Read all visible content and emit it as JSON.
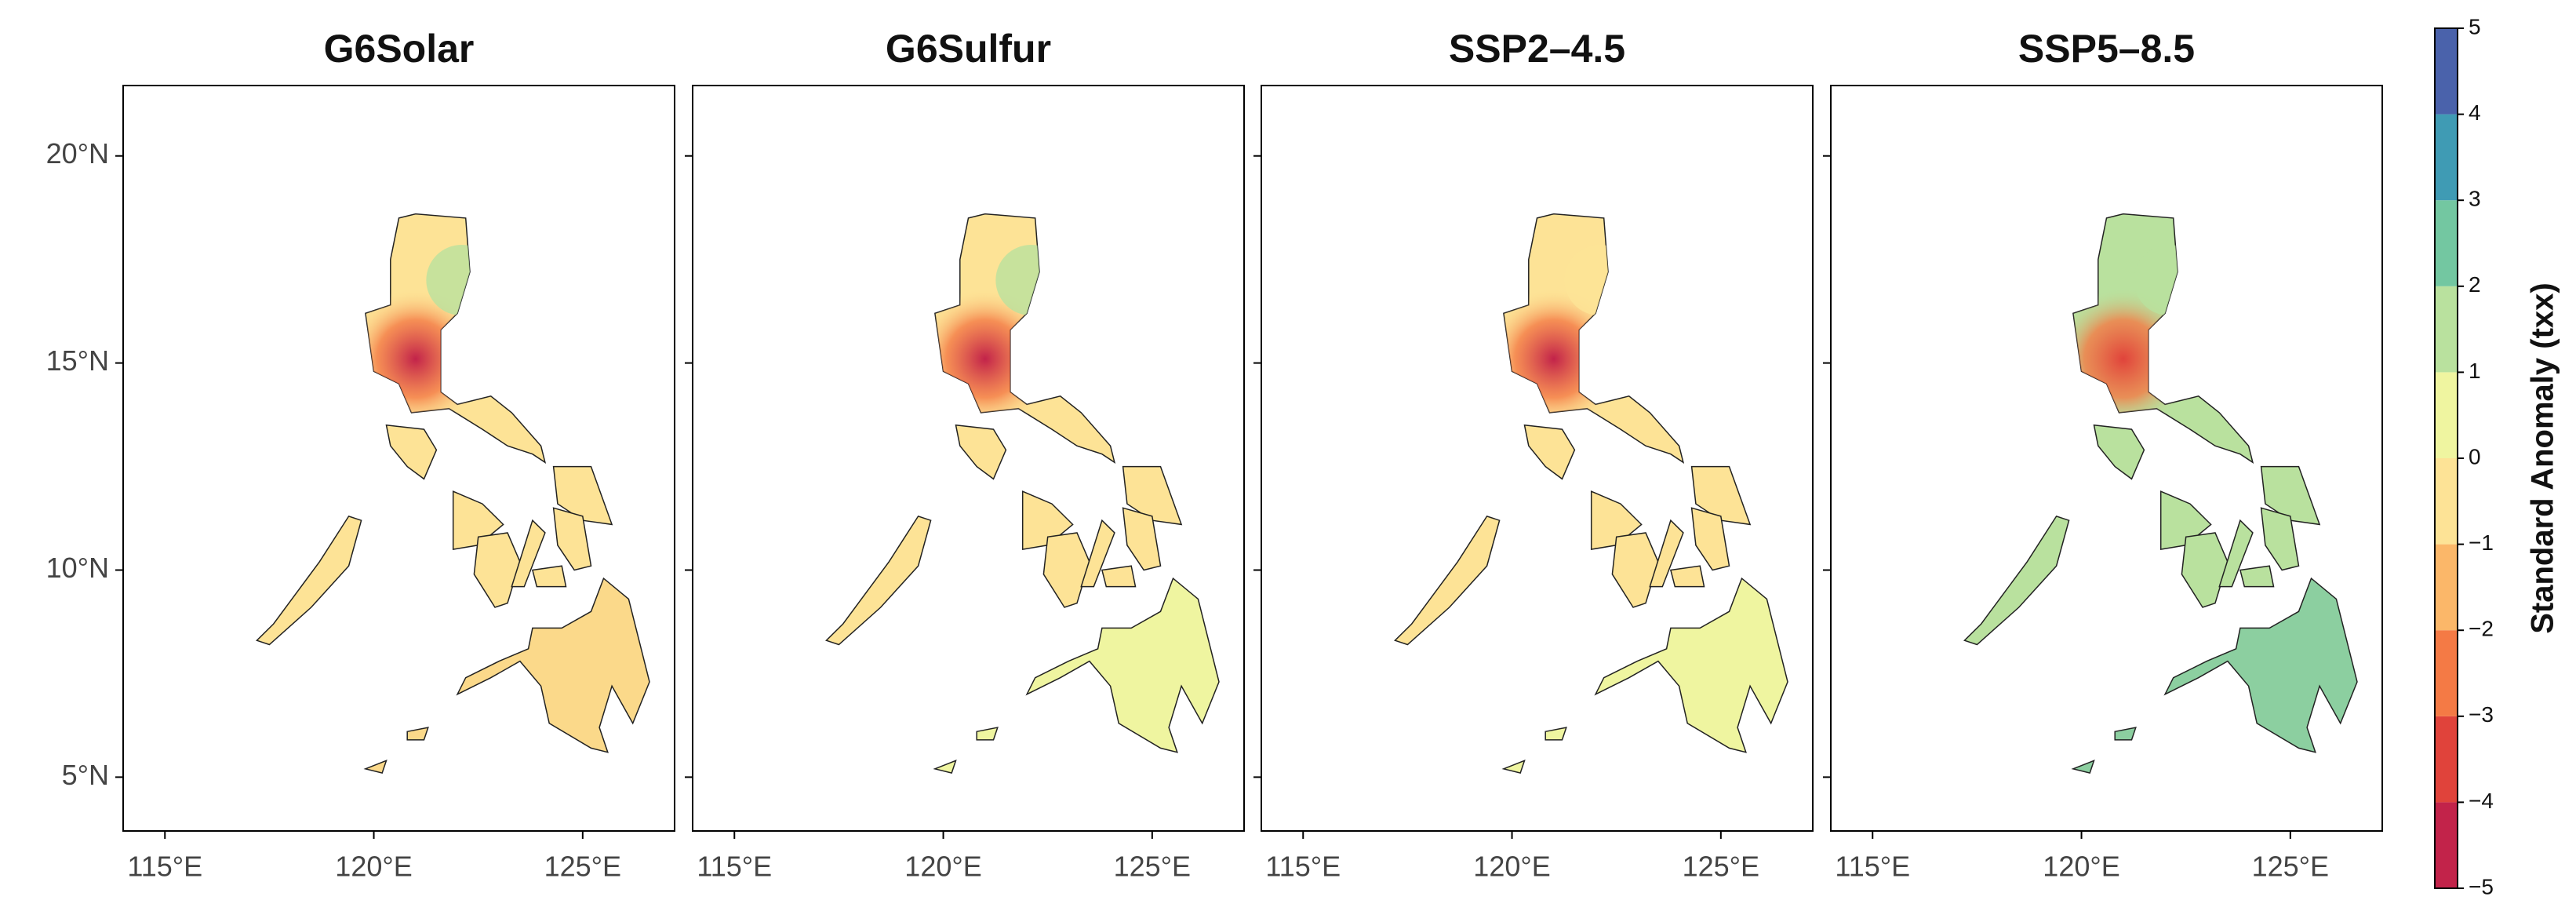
{
  "chart_data": {
    "type": "map",
    "panels": [
      {
        "title": "G6Solar"
      },
      {
        "title": "G6Sulfur"
      },
      {
        "title": "SSP2–4.5"
      },
      {
        "title": "SSP5–8.5"
      }
    ],
    "xlim": [
      114,
      127.2
    ],
    "xticks": [
      {
        "value": 115,
        "label": "115°E"
      },
      {
        "value": 120,
        "label": "120°E"
      },
      {
        "value": 125,
        "label": "125°E"
      }
    ],
    "ylim": [
      3.7,
      21.7
    ],
    "yticks": [
      {
        "value": 5,
        "label": "5°N"
      },
      {
        "value": 10,
        "label": "10°N"
      },
      {
        "value": 15,
        "label": "15°N"
      },
      {
        "value": 20,
        "label": "20°N"
      }
    ],
    "colorbar": {
      "label": "Standard Anomaly (txx)",
      "lim": [
        -5,
        5
      ],
      "ticks": [
        {
          "value": -5,
          "label": "−5"
        },
        {
          "value": -4,
          "label": "−4"
        },
        {
          "value": -3,
          "label": "−3"
        },
        {
          "value": -2,
          "label": "−2"
        },
        {
          "value": -1,
          "label": "−1"
        },
        0,
        1,
        2,
        3,
        4,
        5
      ],
      "colors": [
        "#c2234a",
        "#e0433b",
        "#f47a45",
        "#fbb769",
        "#fde396",
        "#eff5a0",
        "#b9e19e",
        "#73c7a1",
        "#3f9bb4",
        "#4a62ab"
      ]
    }
  }
}
